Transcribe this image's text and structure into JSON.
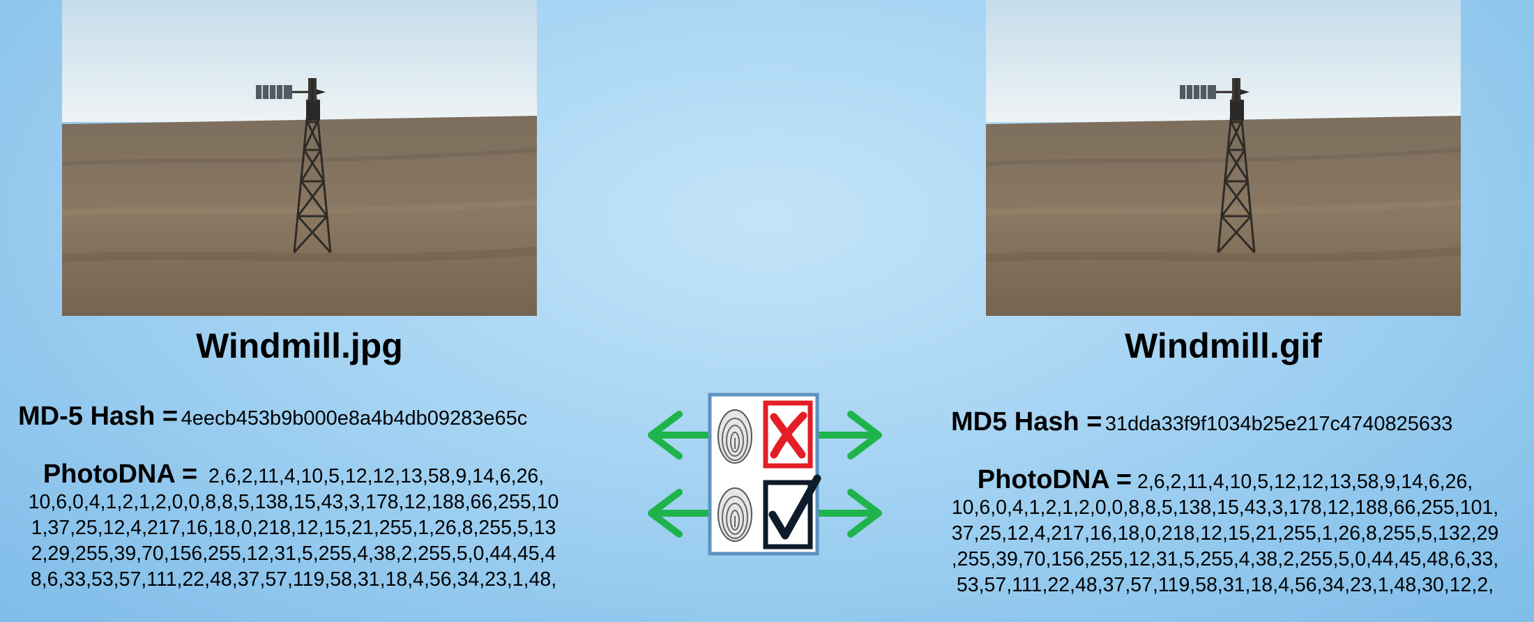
{
  "left": {
    "caption": "Windmill.jpg",
    "md5_label": "MD-5 Hash =",
    "md5_value": "4eecb453b9b000e8a4b4db09283e65c",
    "photodna_label": "PhotoDNA =",
    "photodna_lines": [
      "2,6,2,11,4,10,5,12,12,13,58,9,14,6,26,",
      "10,6,0,4,1,2,1,2,0,0,8,8,5,138,15,43,3,178,12,188,66,255,10",
      "1,37,25,12,4,217,16,18,0,218,12,15,21,255,1,26,8,255,5,13",
      "2,29,255,39,70,156,255,12,31,5,255,4,38,2,255,5,0,44,45,4",
      "8,6,33,53,57,111,22,48,37,57,119,58,31,18,4,56,34,23,1,48,"
    ]
  },
  "right": {
    "caption": "Windmill.gif",
    "md5_label": "MD5 Hash =",
    "md5_value": "31dda33f9f1034b25e217c4740825633",
    "photodna_label": "PhotoDNA =",
    "photodna_lines": [
      "2,6,2,11,4,10,5,12,12,13,58,9,14,6,26,",
      "10,6,0,4,1,2,1,2,0,0,8,8,5,138,15,43,3,178,12,188,66,255,101,",
      "37,25,12,4,217,16,18,0,218,12,15,21,255,1,26,8,255,5,132,29",
      ",255,39,70,156,255,12,31,5,255,4,38,2,255,5,0,44,45,48,6,33,",
      "53,57,111,22,48,37,57,119,58,31,18,4,56,34,23,1,48,30,12,2,"
    ]
  },
  "compare": {
    "top_row": {
      "icon": "fingerprint-icon",
      "result_icon": "x-mark-icon",
      "meaning": "no-match"
    },
    "bottom_row": {
      "icon": "fingerprint-icon",
      "result_icon": "check-mark-icon",
      "meaning": "match"
    },
    "colors": {
      "arrow": "#1fb44b",
      "x_mark": "#e41e26",
      "check_mark": "#0d1b2a",
      "panel_border": "#5b93c1"
    }
  },
  "photo_icons": [
    "windmill-photo-jpg",
    "windmill-photo-gif"
  ]
}
